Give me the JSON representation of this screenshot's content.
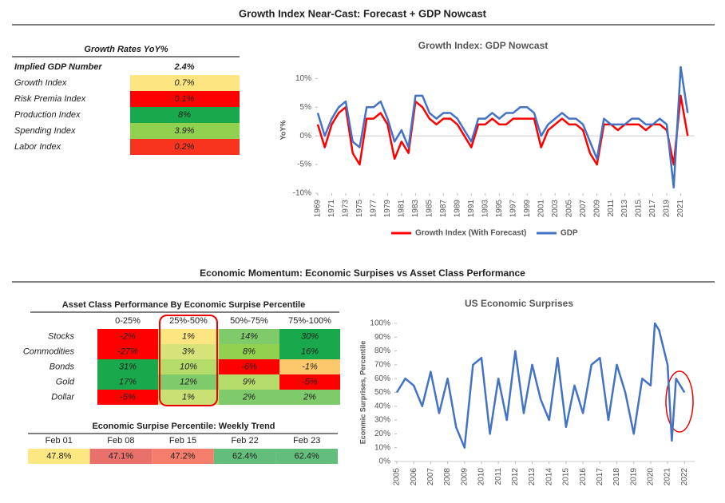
{
  "header": {
    "title": "Growth Index Near-Cast: Forecast + GDP Nowcast"
  },
  "growth_table": {
    "title": "Growth Rates YoY%",
    "rows": [
      {
        "label": "Implied GDP Number",
        "value": "2.4%"
      },
      {
        "label": "Growth Index",
        "value": "0.7%",
        "color": "#fde581"
      },
      {
        "label": "Risk Premia Index",
        "value": "0.1%",
        "color": "#ff0000"
      },
      {
        "label": "Production Index",
        "value": "8%",
        "color": "#1aa84c"
      },
      {
        "label": "Spending Index",
        "value": "3.9%",
        "color": "#92d050"
      },
      {
        "label": "Labor Index",
        "value": "0.2%",
        "color": "#f8341f"
      }
    ]
  },
  "chart_data": [
    {
      "type": "line",
      "title": "Growth Index: GDP Nowcast",
      "ylabel": "YoY%",
      "x": [
        1969,
        1970,
        1971,
        1972,
        1973,
        1974,
        1975,
        1976,
        1977,
        1978,
        1979,
        1980,
        1981,
        1982,
        1983,
        1984,
        1985,
        1986,
        1987,
        1988,
        1989,
        1990,
        1991,
        1992,
        1993,
        1994,
        1995,
        1996,
        1997,
        1998,
        1999,
        2000,
        2001,
        2002,
        2003,
        2004,
        2005,
        2006,
        2007,
        2008,
        2009,
        2010,
        2011,
        2012,
        2013,
        2014,
        2015,
        2016,
        2017,
        2018,
        2019,
        2020,
        2021,
        2022
      ],
      "series": [
        {
          "name": "Growth Index (With Forecast)",
          "color": "#ff0000",
          "values": [
            2,
            -2,
            2,
            4,
            5,
            -3,
            -5,
            3,
            3,
            4,
            2,
            -4,
            -1,
            -3,
            6,
            5,
            3,
            2,
            3,
            3,
            2,
            0,
            -2,
            2,
            2,
            3,
            2,
            2,
            3,
            3,
            3,
            3,
            -2,
            1,
            2,
            3,
            2,
            2,
            1,
            -3,
            -5,
            2,
            2,
            1,
            2,
            2,
            2,
            1,
            2,
            2,
            1,
            -5,
            7,
            0
          ]
        },
        {
          "name": "GDP",
          "color": "#4472c4",
          "values": [
            4,
            0,
            3,
            5,
            6,
            -1,
            -2,
            5,
            5,
            6,
            3,
            -1,
            1,
            -2,
            7,
            7,
            4,
            3,
            4,
            4,
            3,
            1,
            -1,
            3,
            3,
            4,
            3,
            4,
            4,
            5,
            5,
            4,
            0,
            2,
            3,
            4,
            3,
            3,
            2,
            -1,
            -4,
            3,
            2,
            2,
            2,
            3,
            3,
            2,
            2,
            3,
            2,
            -9,
            12,
            4
          ]
        }
      ],
      "xlim": [
        1969,
        2023
      ],
      "ylim": [
        -10,
        12
      ],
      "xticks": [
        1969,
        1971,
        1973,
        1975,
        1977,
        1979,
        1981,
        1983,
        1985,
        1987,
        1989,
        1991,
        1993,
        1995,
        1997,
        1999,
        2001,
        2003,
        2005,
        2007,
        2009,
        2011,
        2013,
        2015,
        2017,
        2019,
        2021
      ],
      "yticks": [
        {
          "value": -10,
          "label": "-10%"
        },
        {
          "value": -5,
          "label": "-5%"
        },
        {
          "value": 0,
          "label": "0%"
        },
        {
          "value": 5,
          "label": "5%"
        },
        {
          "value": 10,
          "label": "10%"
        }
      ],
      "legend": "bottom"
    },
    {
      "type": "line",
      "title": "US Economic Surprises",
      "ylabel": "Econmic Surprises, Percentile",
      "color": "#4472c4",
      "x": [
        2005,
        2005.5,
        2006,
        2006.5,
        2007,
        2007.5,
        2008,
        2008.5,
        2009,
        2009.5,
        2010,
        2010.5,
        2011,
        2011.5,
        2012,
        2012.5,
        2013,
        2013.5,
        2014,
        2014.5,
        2015,
        2015.5,
        2016,
        2016.5,
        2017,
        2017.5,
        2018,
        2018.5,
        2019,
        2019.5,
        2020,
        2020.25,
        2020.5,
        2021,
        2021.25,
        2021.5,
        2022
      ],
      "values": [
        50,
        60,
        55,
        40,
        65,
        35,
        60,
        25,
        10,
        70,
        75,
        20,
        60,
        30,
        80,
        35,
        70,
        45,
        30,
        75,
        25,
        55,
        35,
        70,
        75,
        30,
        70,
        50,
        20,
        60,
        55,
        100,
        95,
        70,
        15,
        60,
        50
      ],
      "xlim": [
        2005,
        2022.6
      ],
      "ylim": [
        0,
        100
      ],
      "xticks": [
        2005,
        2006,
        2007,
        2008,
        2009,
        2010,
        2011,
        2012,
        2013,
        2014,
        2015,
        2016,
        2017,
        2018,
        2019,
        2020,
        2021,
        2022
      ],
      "yticks": [
        {
          "value": 0,
          "label": "0%"
        },
        {
          "value": 10,
          "label": "10%"
        },
        {
          "value": 20,
          "label": "20%"
        },
        {
          "value": 30,
          "label": "30%"
        },
        {
          "value": 40,
          "label": "40%"
        },
        {
          "value": 50,
          "label": "50%"
        },
        {
          "value": 60,
          "label": "60%"
        },
        {
          "value": 70,
          "label": "70%"
        },
        {
          "value": 80,
          "label": "80%"
        },
        {
          "value": 90,
          "label": "90%"
        },
        {
          "value": 100,
          "label": "100%"
        }
      ]
    }
  ],
  "momentum": {
    "title": "Economic Momentum: Economic Surpises vs Asset Class Performance"
  },
  "asset_table": {
    "title": "Asset Class Performance By Economic Surpise Percentile",
    "columns": [
      "0-25%",
      "25%-50%",
      "50%-75%",
      "75%-100%"
    ],
    "rows": [
      {
        "label": "Stocks",
        "values": [
          "-2%",
          "1%",
          "14%",
          "30%"
        ],
        "colors": [
          "#ff0000",
          "#fde581",
          "#7fcb6b",
          "#1aa84c"
        ]
      },
      {
        "label": "Commodities",
        "values": [
          "-27%",
          "3%",
          "8%",
          "16%"
        ],
        "colors": [
          "#ff0000",
          "#d6e37a",
          "#92d050",
          "#1aa84c"
        ]
      },
      {
        "label": "Bonds",
        "values": [
          "31%",
          "10%",
          "-6%",
          "-1%"
        ],
        "colors": [
          "#1aa84c",
          "#b5dc6a",
          "#ff0000",
          "#fdc86b"
        ]
      },
      {
        "label": "Gold",
        "values": [
          "17%",
          "12%",
          "9%",
          "-5%"
        ],
        "colors": [
          "#1aa84c",
          "#7fcb6b",
          "#b5dc6a",
          "#ff0000"
        ]
      },
      {
        "label": "Dollar",
        "values": [
          "-5%",
          "1%",
          "2%",
          "2%"
        ],
        "colors": [
          "#ff0000",
          "#c8e074",
          "#7fcb6b",
          "#7fcb6b"
        ]
      }
    ]
  },
  "trend_table": {
    "title": "Economic Surpise Percentile: Weekly Trend",
    "columns": [
      "Feb 01",
      "Feb 08",
      "Feb 15",
      "Feb 22",
      "Feb 23"
    ],
    "values": [
      "47.8%",
      "47.1%",
      "47.2%",
      "62.4%",
      "62.4%"
    ],
    "colors": [
      "#fce883",
      "#e8716c",
      "#f47e6b",
      "#63be7b",
      "#63be7b"
    ]
  }
}
